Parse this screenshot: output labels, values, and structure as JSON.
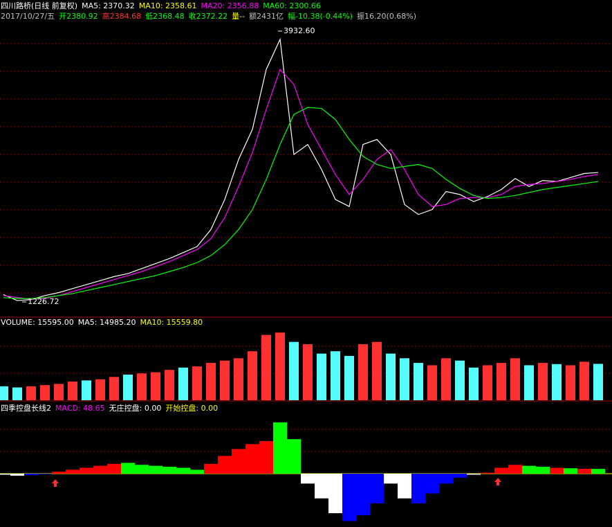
{
  "chart_data": [
    {
      "type": "line",
      "header": [
        {
          "text": "四川路桥(日线 前复权)",
          "color": "#ffffff"
        },
        {
          "text": "MA5: 2370.32",
          "color": "#ffffff"
        },
        {
          "text": "MA10: 2358.61",
          "color": "#ffff00"
        },
        {
          "text": "MA20: 2356.88",
          "color": "#ff00ff"
        },
        {
          "text": "MA60: 2300.66",
          "color": "#00ff00"
        }
      ],
      "quote": [
        {
          "text": "2017/10/27/五",
          "color": "#c0c0c0"
        },
        {
          "text": "开2380.92",
          "color": "#00ff00"
        },
        {
          "text": "高2384.68",
          "color": "#ff3333"
        },
        {
          "text": "低2368.48",
          "color": "#00ff00"
        },
        {
          "text": "收2372.22",
          "color": "#00ff00"
        },
        {
          "text": "量--",
          "color": "#ffff00"
        },
        {
          "text": "额2431亿",
          "color": "#c0c0c0"
        },
        {
          "text": "幅-10.38(-0.44%)",
          "color": "#00ff00"
        },
        {
          "text": "振16.20(0.68%)",
          "color": "#c0c0c0"
        }
      ],
      "annotations": [
        {
          "value": 3932.6,
          "label": "3932.60"
        },
        {
          "value": 1226.72,
          "label": "1226.72"
        }
      ],
      "categories": [
        null,
        null,
        null,
        null,
        null,
        null,
        null,
        null,
        null,
        null,
        null,
        null,
        null,
        null,
        null,
        null,
        null,
        null,
        null,
        null,
        null,
        null,
        null,
        null,
        null,
        null,
        null,
        null,
        null,
        null,
        null,
        null,
        null,
        null,
        null,
        null,
        null,
        null,
        null,
        null,
        null,
        null,
        null,
        null
      ],
      "series": [
        {
          "color": "#ffffff",
          "values": [
            1300,
            1240,
            1250,
            1290,
            1320,
            1360,
            1400,
            1440,
            1480,
            1510,
            1560,
            1610,
            1660,
            1720,
            1780,
            1950,
            2250,
            2650,
            2950,
            3550,
            3850,
            2700,
            2800,
            2550,
            2250,
            2180,
            2800,
            2850,
            2700,
            2200,
            2100,
            2150,
            2330,
            2300,
            2230,
            2280,
            2350,
            2460,
            2380,
            2440,
            2430,
            2470,
            2510,
            2520
          ]
        },
        {
          "color": "#ff00ff",
          "values": [
            1290,
            1270,
            1255,
            1260,
            1290,
            1330,
            1370,
            1410,
            1450,
            1490,
            1530,
            1580,
            1630,
            1690,
            1750,
            1860,
            2070,
            2380,
            2720,
            3150,
            3550,
            3400,
            3000,
            2750,
            2500,
            2300,
            2450,
            2650,
            2750,
            2550,
            2300,
            2180,
            2200,
            2260,
            2270,
            2270,
            2300,
            2380,
            2400,
            2410,
            2430,
            2450,
            2480,
            2500
          ]
        },
        {
          "color": "#00ff00",
          "values": [
            1270,
            1260,
            1260,
            1270,
            1290,
            1310,
            1340,
            1370,
            1400,
            1430,
            1460,
            1490,
            1530,
            1570,
            1620,
            1690,
            1800,
            1950,
            2150,
            2450,
            2800,
            3100,
            3170,
            3160,
            3050,
            2850,
            2680,
            2600,
            2560,
            2580,
            2600,
            2560,
            2450,
            2360,
            2290,
            2260,
            2270,
            2290,
            2320,
            2350,
            2370,
            2390,
            2410,
            2430
          ]
        }
      ],
      "ylim": [
        1095,
        4022
      ]
    },
    {
      "type": "bar",
      "header": [
        {
          "text": "VOLUME: 15595.00",
          "color": "#ffffff"
        },
        {
          "text": "MA5: 14985.20",
          "color": "#ffffff"
        },
        {
          "text": "MA10: 15559.80",
          "color": "#ffff00"
        }
      ],
      "values": [
        6000,
        5500,
        6000,
        6500,
        7000,
        8000,
        8500,
        9000,
        10000,
        11000,
        11500,
        12000,
        13000,
        14000,
        14500,
        16000,
        17000,
        18000,
        21000,
        28000,
        29000,
        25000,
        24000,
        20000,
        21000,
        19000,
        24000,
        25000,
        20000,
        18000,
        16000,
        15000,
        18000,
        17000,
        14000,
        15000,
        16000,
        18000,
        15000,
        16000,
        15500,
        15000,
        16500,
        15595
      ],
      "colors": [
        "#54fcfc",
        "#54fcfc",
        "#ff3232",
        "#ff3232",
        "#ff3232",
        "#ff3232",
        "#54fcfc",
        "#ff3232",
        "#ff3232",
        "#54fcfc",
        "#ff3232",
        "#ff3232",
        "#ff3232",
        "#54fcfc",
        "#ff3232",
        "#ff3232",
        "#ff3232",
        "#ff3232",
        "#ff3232",
        "#ff3232",
        "#ff3232",
        "#54fcfc",
        "#ff3232",
        "#54fcfc",
        "#54fcfc",
        "#54fcfc",
        "#ff3232",
        "#ff3232",
        "#54fcfc",
        "#54fcfc",
        "#54fcfc",
        "#ff3232",
        "#ff3232",
        "#54fcfc",
        "#54fcfc",
        "#ff3232",
        "#ff3232",
        "#ff3232",
        "#54fcfc",
        "#ff3232",
        "#54fcfc",
        "#ff3232",
        "#ff3232",
        "#54fcfc"
      ],
      "ylim": [
        0,
        35000
      ]
    },
    {
      "type": "bar",
      "header": [
        {
          "text": "四季控盘长线2",
          "color": "#ffffff"
        },
        {
          "text": "MACD: 48.65",
          "color": "#ff00ff"
        },
        {
          "text": "无庄控盘: 0.00",
          "color": "#ffffff"
        },
        {
          "text": "开始控盘: 0.00",
          "color": "#ffff00"
        }
      ],
      "values": [
        -10,
        -20,
        -15,
        -5,
        20,
        40,
        60,
        80,
        100,
        110,
        90,
        80,
        70,
        60,
        40,
        100,
        180,
        250,
        300,
        330,
        520,
        350,
        -100,
        -250,
        -400,
        -480,
        -420,
        -300,
        -100,
        -250,
        -300,
        -200,
        -100,
        -40,
        -10,
        10,
        60,
        90,
        80,
        70,
        60,
        55,
        50,
        48.65
      ],
      "colors": [
        "#ffffff",
        "#ffffff",
        "#0000ff",
        "#0000ff",
        "#ff0000",
        "#ff0000",
        "#ff0000",
        "#ff0000",
        "#ff0000",
        "#00ff00",
        "#00ff00",
        "#00ff00",
        "#00ff00",
        "#00ff00",
        "#00ff00",
        "#ff0000",
        "#ff0000",
        "#ff0000",
        "#ff0000",
        "#ff0000",
        "#00ff00",
        "#00ff00",
        "#ffffff",
        "#ffffff",
        "#ffffff",
        "#0000ff",
        "#0000ff",
        "#0000ff",
        "#ffffff",
        "#ffffff",
        "#0000ff",
        "#0000ff",
        "#0000ff",
        "#0000ff",
        "#ffffff",
        "#ff0000",
        "#ff0000",
        "#ff0000",
        "#00ff00",
        "#00ff00",
        "#ff0000",
        "#00ff00",
        "#ff0000",
        "#00ff00"
      ],
      "ylim": [
        -540,
        730
      ]
    }
  ]
}
